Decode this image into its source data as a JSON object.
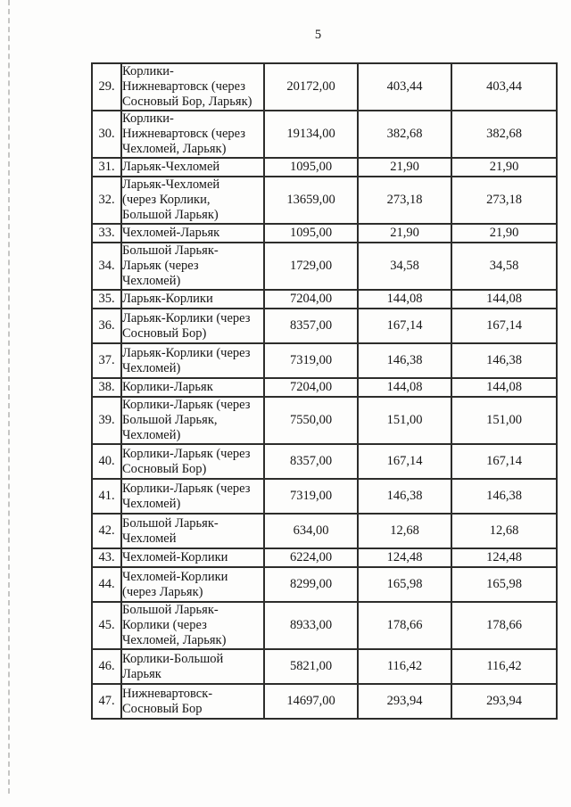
{
  "page": {
    "number": "5"
  },
  "table": {
    "rows": [
      {
        "num": "29.",
        "name": "Корлики-\nНижневартовск (через\nСосновый Бор, Ларьяк)",
        "values": [
          "20172,00",
          "403,44",
          "403,44"
        ]
      },
      {
        "num": "30.",
        "name": "Корлики-\nНижневартовск (через\nЧехломей, Ларьяк)",
        "values": [
          "19134,00",
          "382,68",
          "382,68"
        ]
      },
      {
        "num": "31.",
        "name": "Ларьяк-Чехломей",
        "values": [
          "1095,00",
          "21,90",
          "21,90"
        ]
      },
      {
        "num": "32.",
        "name": "Ларьяк-Чехломей\n(через Корлики,\nБольшой Ларьяк)",
        "values": [
          "13659,00",
          "273,18",
          "273,18"
        ]
      },
      {
        "num": "33.",
        "name": "Чехломей-Ларьяк",
        "values": [
          "1095,00",
          "21,90",
          "21,90"
        ]
      },
      {
        "num": "34.",
        "name": "Большой Ларьяк-\nЛарьяк (через\nЧехломей)",
        "values": [
          "1729,00",
          "34,58",
          "34,58"
        ]
      },
      {
        "num": "35.",
        "name": "Ларьяк-Корлики",
        "values": [
          "7204,00",
          "144,08",
          "144,08"
        ]
      },
      {
        "num": "36.",
        "name": "Ларьяк-Корлики (через\nСосновый Бор)",
        "values": [
          "8357,00",
          "167,14",
          "167,14"
        ]
      },
      {
        "num": "37.",
        "name": "Ларьяк-Корлики (через\nЧехломей)",
        "values": [
          "7319,00",
          "146,38",
          "146,38"
        ]
      },
      {
        "num": "38.",
        "name": "Корлики-Ларьяк",
        "values": [
          "7204,00",
          "144,08",
          "144,08"
        ]
      },
      {
        "num": "39.",
        "name": "Корлики-Ларьяк (через\nБольшой Ларьяк,\nЧехломей)",
        "values": [
          "7550,00",
          "151,00",
          "151,00"
        ]
      },
      {
        "num": "40.",
        "name": "Корлики-Ларьяк (через\nСосновый Бор)",
        "values": [
          "8357,00",
          "167,14",
          "167,14"
        ]
      },
      {
        "num": "41.",
        "name": "Корлики-Ларьяк (через\nЧехломей)",
        "values": [
          "7319,00",
          "146,38",
          "146,38"
        ]
      },
      {
        "num": "42.",
        "name": "Большой Ларьяк-\nЧехломей",
        "values": [
          "634,00",
          "12,68",
          "12,68"
        ]
      },
      {
        "num": "43.",
        "name": "Чехломей-Корлики",
        "values": [
          "6224,00",
          "124,48",
          "124,48"
        ]
      },
      {
        "num": "44.",
        "name": "Чехломей-Корлики\n(через Ларьяк)",
        "values": [
          "8299,00",
          "165,98",
          "165,98"
        ]
      },
      {
        "num": "45.",
        "name": "Большой Ларьяк-\nКорлики (через\nЧехломей, Ларьяк)",
        "values": [
          "8933,00",
          "178,66",
          "178,66"
        ]
      },
      {
        "num": "46.",
        "name": "Корлики-Большой\nЛарьяк",
        "values": [
          "5821,00",
          "116,42",
          "116,42"
        ]
      },
      {
        "num": "47.",
        "name": "Нижневартовск-\nСосновый Бор",
        "values": [
          "14697,00",
          "293,94",
          "293,94"
        ]
      }
    ]
  }
}
